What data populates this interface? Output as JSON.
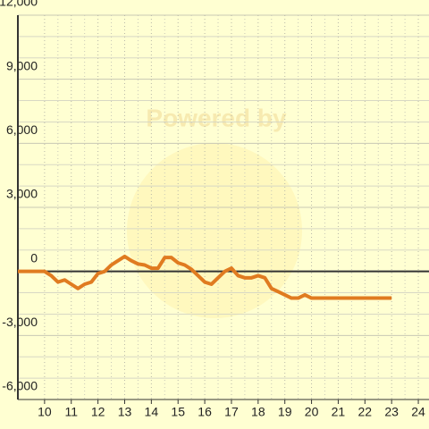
{
  "chart_data": {
    "type": "line",
    "watermark": "Powered by",
    "x": [
      9,
      10,
      10.25,
      10.5,
      10.75,
      11,
      11.25,
      11.5,
      11.75,
      12,
      12.25,
      12.5,
      12.75,
      13,
      13.25,
      13.5,
      13.75,
      14,
      14.25,
      14.5,
      14.75,
      15,
      15.25,
      15.5,
      15.75,
      16,
      16.25,
      16.5,
      16.75,
      17,
      17.25,
      17.5,
      17.75,
      18,
      18.25,
      18.5,
      18.75,
      19,
      19.25,
      19.5,
      19.75,
      20,
      20.5,
      21,
      22,
      23
    ],
    "series": [
      {
        "color": "#e07b20",
        "values": [
          0,
          0,
          -200,
          -500,
          -400,
          -600,
          -800,
          -600,
          -500,
          -100,
          0,
          300,
          500,
          700,
          500,
          350,
          300,
          150,
          150,
          650,
          650,
          400,
          300,
          100,
          -200,
          -500,
          -600,
          -300,
          0,
          150,
          -200,
          -300,
          -300,
          -200,
          -300,
          -800,
          -950,
          -1100,
          -1250,
          -1250,
          -1100,
          -1250,
          -1250,
          -1250,
          -1250,
          -1250
        ]
      }
    ],
    "xlim": [
      9,
      24.4
    ],
    "xticks": [
      10,
      11,
      12,
      13,
      14,
      15,
      16,
      17,
      18,
      19,
      20,
      21,
      22,
      23,
      24
    ],
    "ylim": [
      -6000,
      12000
    ],
    "yticks": [
      {
        "value": -6000,
        "label": "-6,000"
      },
      {
        "value": -3000,
        "label": "-3,000"
      },
      0,
      {
        "value": 3000,
        "label": "3,000"
      },
      {
        "value": 6000,
        "label": "6,000"
      },
      {
        "value": 9000,
        "label": "9,000"
      },
      {
        "value": 12000,
        "label": "12,000"
      }
    ],
    "grid": true
  }
}
